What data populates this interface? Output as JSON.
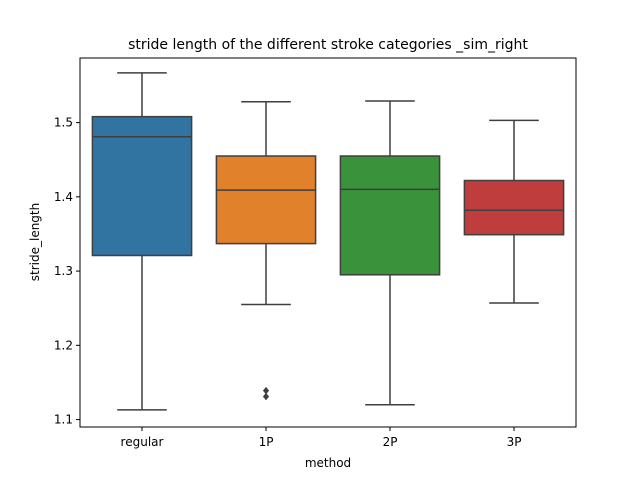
{
  "chart_data": {
    "type": "box",
    "title": "stride length of the different stroke categories _sim_right",
    "xlabel": "method",
    "ylabel": "stride_length",
    "categories": [
      "regular",
      "1P",
      "2P",
      "3P"
    ],
    "ylim": [
      1.09,
      1.587
    ],
    "yticks": [
      1.1,
      1.2,
      1.3,
      1.4,
      1.5
    ],
    "ytick_labels": [
      "1.1",
      "1.2",
      "1.3",
      "1.4",
      "1.5"
    ],
    "grid": false,
    "boxes": [
      {
        "category": "regular",
        "whisker_low": 1.113,
        "q1": 1.321,
        "median": 1.481,
        "q3": 1.508,
        "whisker_high": 1.567,
        "outliers": [],
        "color": "#3274a1"
      },
      {
        "category": "1P",
        "whisker_low": 1.255,
        "q1": 1.337,
        "median": 1.409,
        "q3": 1.455,
        "whisker_high": 1.528,
        "outliers": [
          1.131,
          1.139
        ],
        "color": "#e1812c"
      },
      {
        "category": "2P",
        "whisker_low": 1.12,
        "q1": 1.295,
        "median": 1.41,
        "q3": 1.455,
        "whisker_high": 1.529,
        "outliers": [],
        "color": "#3a923a"
      },
      {
        "category": "3P",
        "whisker_low": 1.257,
        "q1": 1.349,
        "median": 1.382,
        "q3": 1.422,
        "whisker_high": 1.503,
        "outliers": [],
        "color": "#c03d3e"
      }
    ],
    "line_color": "#3f3f3f"
  }
}
